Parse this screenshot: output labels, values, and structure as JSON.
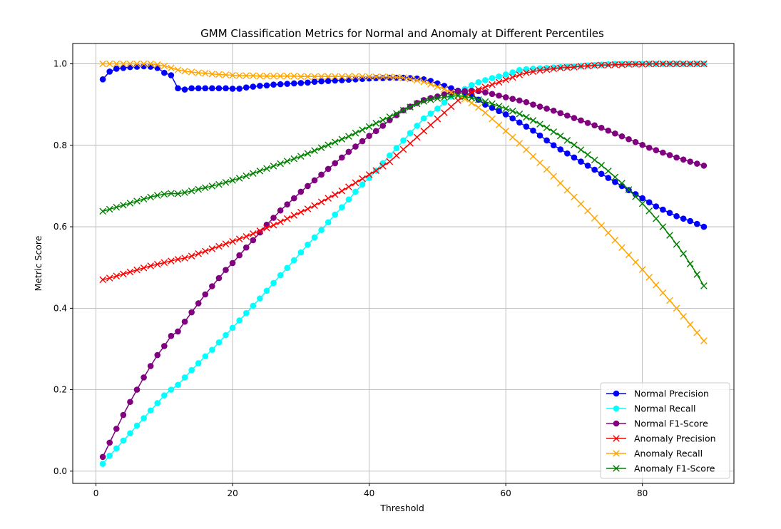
{
  "chart_data": {
    "type": "line",
    "title": "GMM Classification Metrics for Normal and Anomaly at Different Percentiles",
    "xlabel": "Threshold",
    "ylabel": "Metric Score",
    "xlim": [
      -3.4,
      93.4
    ],
    "ylim": [
      -0.03,
      1.05
    ],
    "xticks": [
      0,
      20,
      40,
      60,
      80
    ],
    "yticks": [
      0.0,
      0.2,
      0.4,
      0.6,
      0.8,
      1.0
    ],
    "grid": true,
    "legend_position": "lower-right",
    "x": [
      1,
      2,
      3,
      4,
      5,
      6,
      7,
      8,
      9,
      10,
      11,
      12,
      13,
      14,
      15,
      16,
      17,
      18,
      19,
      20,
      21,
      22,
      23,
      24,
      25,
      26,
      27,
      28,
      29,
      30,
      31,
      32,
      33,
      34,
      35,
      36,
      37,
      38,
      39,
      40,
      41,
      42,
      43,
      44,
      45,
      46,
      47,
      48,
      49,
      50,
      51,
      52,
      53,
      54,
      55,
      56,
      57,
      58,
      59,
      60,
      61,
      62,
      63,
      64,
      65,
      66,
      67,
      68,
      69,
      70,
      71,
      72,
      73,
      74,
      75,
      76,
      77,
      78,
      79,
      80,
      81,
      82,
      83,
      84,
      85,
      86,
      87,
      88,
      89
    ],
    "series": [
      {
        "name": "Normal Precision",
        "color": "#0000ff",
        "marker": "circle",
        "values": [
          0.962,
          0.981,
          0.988,
          0.99,
          0.992,
          0.993,
          0.994,
          0.993,
          0.99,
          0.978,
          0.972,
          0.94,
          0.937,
          0.94,
          0.94,
          0.94,
          0.94,
          0.94,
          0.94,
          0.939,
          0.939,
          0.942,
          0.944,
          0.946,
          0.947,
          0.949,
          0.95,
          0.951,
          0.952,
          0.953,
          0.954,
          0.956,
          0.957,
          0.958,
          0.959,
          0.96,
          0.961,
          0.962,
          0.963,
          0.964,
          0.965,
          0.965,
          0.966,
          0.966,
          0.966,
          0.965,
          0.964,
          0.962,
          0.958,
          0.952,
          0.946,
          0.94,
          0.934,
          0.929,
          0.924,
          0.912,
          0.9,
          0.892,
          0.884,
          0.876,
          0.866,
          0.856,
          0.846,
          0.836,
          0.824,
          0.812,
          0.8,
          0.79,
          0.78,
          0.77,
          0.76,
          0.75,
          0.74,
          0.73,
          0.72,
          0.71,
          0.7,
          0.69,
          0.68,
          0.67,
          0.66,
          0.65,
          0.642,
          0.634,
          0.626,
          0.62,
          0.614,
          0.607,
          0.6
        ]
      },
      {
        "name": "Normal Recall",
        "color": "#00ffff",
        "marker": "circle",
        "values": [
          0.018,
          0.038,
          0.056,
          0.075,
          0.093,
          0.112,
          0.13,
          0.149,
          0.167,
          0.186,
          0.2,
          0.212,
          0.23,
          0.248,
          0.265,
          0.282,
          0.298,
          0.316,
          0.334,
          0.352,
          0.37,
          0.388,
          0.406,
          0.424,
          0.443,
          0.462,
          0.481,
          0.499,
          0.518,
          0.537,
          0.556,
          0.574,
          0.592,
          0.611,
          0.63,
          0.648,
          0.667,
          0.686,
          0.704,
          0.72,
          0.738,
          0.756,
          0.775,
          0.793,
          0.812,
          0.83,
          0.848,
          0.866,
          0.878,
          0.89,
          0.905,
          0.92,
          0.93,
          0.938,
          0.948,
          0.955,
          0.96,
          0.965,
          0.969,
          0.974,
          0.979,
          0.985,
          0.987,
          0.988,
          0.989,
          0.99,
          0.991,
          0.992,
          0.993,
          0.994,
          0.995,
          0.996,
          0.997,
          0.998,
          0.999,
          1.0,
          1.0,
          1.0,
          1.0,
          1.0,
          1.0,
          1.0,
          1.0,
          1.0,
          1.0,
          1.0,
          1.0,
          1.0,
          1.0
        ]
      },
      {
        "name": "Normal F1-Score",
        "color": "#800080",
        "marker": "circle",
        "values": [
          0.035,
          0.07,
          0.104,
          0.138,
          0.17,
          0.2,
          0.23,
          0.258,
          0.285,
          0.307,
          0.332,
          0.343,
          0.367,
          0.39,
          0.412,
          0.434,
          0.454,
          0.474,
          0.494,
          0.511,
          0.53,
          0.549,
          0.567,
          0.586,
          0.605,
          0.622,
          0.64,
          0.655,
          0.67,
          0.686,
          0.7,
          0.714,
          0.728,
          0.742,
          0.756,
          0.77,
          0.784,
          0.797,
          0.81,
          0.823,
          0.835,
          0.848,
          0.862,
          0.874,
          0.886,
          0.895,
          0.904,
          0.911,
          0.916,
          0.92,
          0.925,
          0.93,
          0.932,
          0.933,
          0.934,
          0.933,
          0.93,
          0.926,
          0.922,
          0.918,
          0.914,
          0.91,
          0.906,
          0.9,
          0.895,
          0.89,
          0.885,
          0.879,
          0.873,
          0.867,
          0.861,
          0.855,
          0.849,
          0.843,
          0.836,
          0.829,
          0.822,
          0.815,
          0.808,
          0.801,
          0.794,
          0.788,
          0.782,
          0.776,
          0.77,
          0.765,
          0.76,
          0.755,
          0.75
        ]
      },
      {
        "name": "Anomaly Precision",
        "color": "#ff0000",
        "marker": "x",
        "values": [
          0.47,
          0.474,
          0.479,
          0.484,
          0.489,
          0.494,
          0.499,
          0.504,
          0.508,
          0.512,
          0.516,
          0.52,
          0.523,
          0.528,
          0.534,
          0.54,
          0.546,
          0.552,
          0.558,
          0.564,
          0.57,
          0.576,
          0.583,
          0.59,
          0.597,
          0.604,
          0.612,
          0.62,
          0.628,
          0.636,
          0.644,
          0.652,
          0.661,
          0.67,
          0.679,
          0.688,
          0.698,
          0.708,
          0.718,
          0.728,
          0.738,
          0.749,
          0.76,
          0.775,
          0.79,
          0.805,
          0.82,
          0.835,
          0.85,
          0.865,
          0.88,
          0.895,
          0.91,
          0.92,
          0.93,
          0.937,
          0.943,
          0.949,
          0.955,
          0.961,
          0.967,
          0.973,
          0.978,
          0.981,
          0.984,
          0.986,
          0.988,
          0.99,
          0.991,
          0.992,
          0.994,
          0.995,
          0.996,
          0.997,
          0.997,
          0.998,
          0.998,
          0.999,
          0.999,
          0.999,
          1.0,
          1.0,
          1.0,
          1.0,
          1.0,
          1.0,
          1.0,
          1.0,
          1.0
        ]
      },
      {
        "name": "Anomaly Recall",
        "color": "#ffa500",
        "marker": "x",
        "values": [
          1.0,
          1.0,
          1.0,
          1.0,
          1.0,
          1.0,
          1.0,
          1.0,
          0.998,
          0.995,
          0.99,
          0.985,
          0.982,
          0.98,
          0.978,
          0.977,
          0.975,
          0.974,
          0.973,
          0.972,
          0.971,
          0.971,
          0.971,
          0.97,
          0.97,
          0.97,
          0.97,
          0.97,
          0.97,
          0.969,
          0.969,
          0.969,
          0.969,
          0.969,
          0.969,
          0.969,
          0.969,
          0.969,
          0.969,
          0.968,
          0.968,
          0.968,
          0.968,
          0.967,
          0.966,
          0.963,
          0.96,
          0.956,
          0.95,
          0.944,
          0.938,
          0.93,
          0.922,
          0.914,
          0.904,
          0.893,
          0.88,
          0.865,
          0.85,
          0.835,
          0.82,
          0.805,
          0.789,
          0.773,
          0.757,
          0.741,
          0.724,
          0.707,
          0.69,
          0.673,
          0.656,
          0.639,
          0.621,
          0.603,
          0.585,
          0.567,
          0.549,
          0.531,
          0.513,
          0.495,
          0.476,
          0.457,
          0.438,
          0.419,
          0.4,
          0.38,
          0.36,
          0.34,
          0.32
        ]
      },
      {
        "name": "Anomaly F1-Score",
        "color": "#008000",
        "marker": "x",
        "values": [
          0.638,
          0.643,
          0.648,
          0.653,
          0.658,
          0.663,
          0.668,
          0.673,
          0.677,
          0.68,
          0.682,
          0.681,
          0.684,
          0.688,
          0.692,
          0.696,
          0.7,
          0.704,
          0.709,
          0.714,
          0.719,
          0.725,
          0.731,
          0.737,
          0.743,
          0.749,
          0.755,
          0.761,
          0.767,
          0.773,
          0.78,
          0.787,
          0.794,
          0.801,
          0.808,
          0.815,
          0.822,
          0.83,
          0.838,
          0.846,
          0.854,
          0.862,
          0.87,
          0.878,
          0.886,
          0.894,
          0.902,
          0.908,
          0.912,
          0.915,
          0.918,
          0.92,
          0.922,
          0.92,
          0.916,
          0.912,
          0.907,
          0.902,
          0.896,
          0.89,
          0.884,
          0.877,
          0.869,
          0.861,
          0.852,
          0.843,
          0.833,
          0.823,
          0.812,
          0.801,
          0.789,
          0.777,
          0.764,
          0.751,
          0.737,
          0.722,
          0.707,
          0.691,
          0.674,
          0.657,
          0.639,
          0.62,
          0.6,
          0.579,
          0.557,
          0.534,
          0.509,
          0.483,
          0.455
        ]
      }
    ]
  }
}
